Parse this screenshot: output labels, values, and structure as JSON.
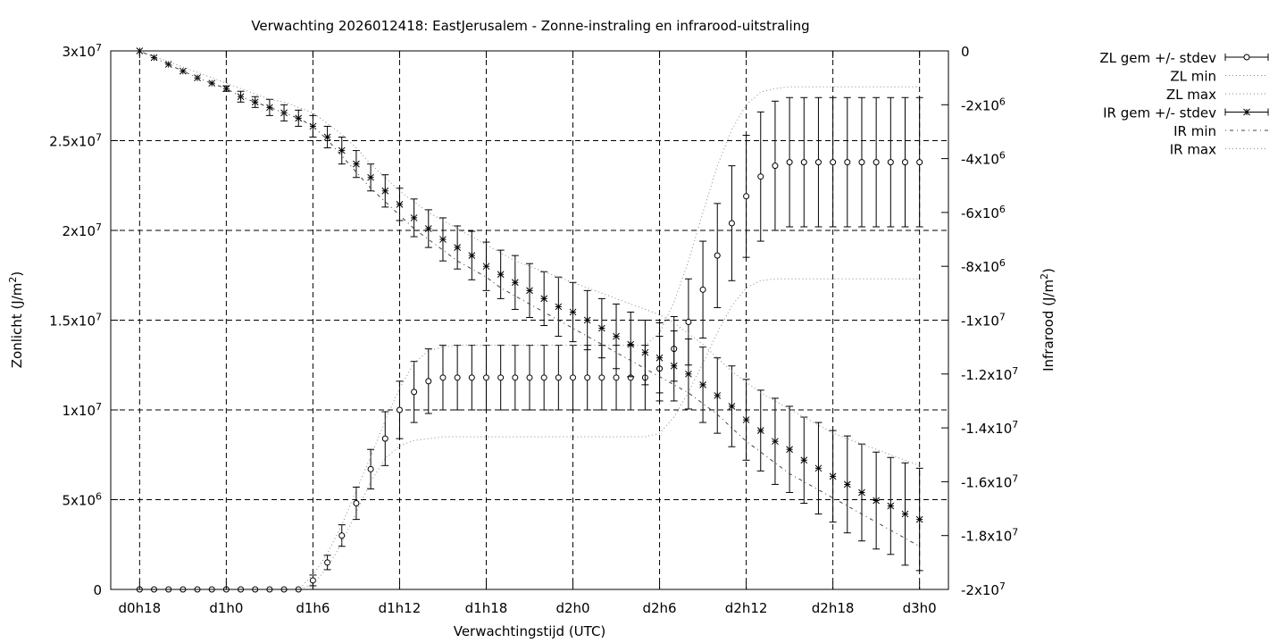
{
  "chart_data": {
    "type": "line",
    "title": "Verwachting 2026012418: EastJerusalem - Zonne-instraling en infrarood-uitstraling",
    "xlabel": "Verwachtingstijd (UTC)",
    "ylabel": "Zonlicht (J/m2)",
    "y2label": "Infrarood (J/m2)",
    "x_ticks": [
      {
        "h": 18,
        "label": "d0h18"
      },
      {
        "h": 24,
        "label": "d1h0"
      },
      {
        "h": 30,
        "label": "d1h6"
      },
      {
        "h": 36,
        "label": "d1h12"
      },
      {
        "h": 42,
        "label": "d1h18"
      },
      {
        "h": 48,
        "label": "d2h0"
      },
      {
        "h": 54,
        "label": "d2h6"
      },
      {
        "h": 60,
        "label": "d2h12"
      },
      {
        "h": 66,
        "label": "d2h18"
      },
      {
        "h": 72,
        "label": "d3h0"
      }
    ],
    "xlim": [
      16,
      74
    ],
    "ylim": [
      0,
      30000000
    ],
    "y2lim": [
      -20000000,
      0
    ],
    "y_ticks": [
      {
        "v": 0,
        "m": "0",
        "e": ""
      },
      {
        "v": 5000000,
        "m": "5x10",
        "e": "6"
      },
      {
        "v": 10000000,
        "m": "1x10",
        "e": "7"
      },
      {
        "v": 15000000,
        "m": "1.5x10",
        "e": "7"
      },
      {
        "v": 20000000,
        "m": "2x10",
        "e": "7"
      },
      {
        "v": 25000000,
        "m": "2.5x10",
        "e": "7"
      },
      {
        "v": 30000000,
        "m": "3x10",
        "e": "7"
      }
    ],
    "y2_ticks": [
      {
        "v": 0,
        "m": "0",
        "e": ""
      },
      {
        "v": -2000000,
        "m": "-2x10",
        "e": "6"
      },
      {
        "v": -4000000,
        "m": "-4x10",
        "e": "6"
      },
      {
        "v": -6000000,
        "m": "-6x10",
        "e": "6"
      },
      {
        "v": -8000000,
        "m": "-8x10",
        "e": "6"
      },
      {
        "v": -10000000,
        "m": "-1x10",
        "e": "7"
      },
      {
        "v": -12000000,
        "m": "-1.2x10",
        "e": "7"
      },
      {
        "v": -14000000,
        "m": "-1.4x10",
        "e": "7"
      },
      {
        "v": -16000000,
        "m": "-1.6x10",
        "e": "7"
      },
      {
        "v": -18000000,
        "m": "-1.8x10",
        "e": "7"
      },
      {
        "v": -20000000,
        "m": "-2x10",
        "e": "7"
      }
    ],
    "grid": true,
    "legend_position": "outside top-right",
    "legend": [
      {
        "label": "ZL gem +/- stdev",
        "style": "errorbar-circle"
      },
      {
        "label": "ZL min",
        "style": "dotted"
      },
      {
        "label": "ZL max",
        "style": "dotted"
      },
      {
        "label": "IR gem +/- stdev",
        "style": "errorbar-star"
      },
      {
        "label": "IR min",
        "style": "dotdash"
      },
      {
        "label": "IR max",
        "style": "dotted"
      }
    ],
    "x": [
      18,
      19,
      20,
      21,
      22,
      23,
      24,
      25,
      26,
      27,
      28,
      29,
      30,
      31,
      32,
      33,
      34,
      35,
      36,
      37,
      38,
      39,
      40,
      41,
      42,
      43,
      44,
      45,
      46,
      47,
      48,
      49,
      50,
      51,
      52,
      53,
      54,
      55,
      56,
      57,
      58,
      59,
      60,
      61,
      62,
      63,
      64,
      65,
      66,
      67,
      68,
      69,
      70,
      71,
      72
    ],
    "series": [
      {
        "name": "ZL gem +/- stdev",
        "axis": "y",
        "marker": "circle",
        "values": [
          0,
          0,
          0,
          0,
          0,
          0,
          0,
          0,
          0,
          0,
          0,
          0,
          500000,
          1500000,
          3000000,
          4800000,
          6700000,
          8400000,
          10000000,
          11000000,
          11600000,
          11800000,
          11800000,
          11800000,
          11800000,
          11800000,
          11800000,
          11800000,
          11800000,
          11800000,
          11800000,
          11800000,
          11800000,
          11800000,
          11800000,
          11800000,
          12300000,
          13400000,
          14900000,
          16700000,
          18600000,
          20400000,
          21900000,
          23000000,
          23600000,
          23800000,
          23800000,
          23800000,
          23800000,
          23800000,
          23800000,
          23800000,
          23800000,
          23800000,
          23800000
        ],
        "stdev": [
          0,
          0,
          0,
          0,
          0,
          0,
          0,
          0,
          0,
          0,
          0,
          0,
          300000,
          400000,
          600000,
          900000,
          1100000,
          1500000,
          1600000,
          1700000,
          1800000,
          1800000,
          1800000,
          1800000,
          1800000,
          1800000,
          1800000,
          1800000,
          1800000,
          1800000,
          1800000,
          1800000,
          1800000,
          1800000,
          1800000,
          1800000,
          1800000,
          1800000,
          2400000,
          2700000,
          2900000,
          3200000,
          3400000,
          3600000,
          3600000,
          3600000,
          3600000,
          3600000,
          3600000,
          3600000,
          3600000,
          3600000,
          3600000,
          3600000,
          3600000
        ]
      },
      {
        "name": "ZL min",
        "axis": "y",
        "values": [
          0,
          0,
          0,
          0,
          0,
          0,
          0,
          0,
          0,
          0,
          0,
          0,
          300000,
          1200000,
          2600000,
          4300000,
          6000000,
          7300000,
          8000000,
          8300000,
          8400000,
          8500000,
          8500000,
          8500000,
          8500000,
          8500000,
          8500000,
          8500000,
          8500000,
          8500000,
          8500000,
          8500000,
          8500000,
          8500000,
          8500000,
          8500000,
          8700000,
          9600000,
          11000000,
          12600000,
          14300000,
          15800000,
          16800000,
          17200000,
          17300000,
          17300000,
          17300000,
          17300000,
          17300000,
          17300000,
          17300000,
          17300000,
          17300000,
          17300000,
          17300000
        ]
      },
      {
        "name": "ZL max",
        "axis": "y",
        "values": [
          0,
          0,
          0,
          0,
          0,
          0,
          0,
          0,
          0,
          0,
          0,
          0,
          800000,
          2000000,
          3600000,
          5500000,
          7400000,
          9400000,
          11200000,
          12600000,
          13300000,
          13500000,
          13600000,
          13600000,
          13600000,
          13600000,
          13600000,
          13600000,
          13600000,
          13600000,
          13600000,
          13600000,
          13600000,
          13600000,
          13600000,
          13600000,
          14300000,
          16000000,
          18300000,
          21000000,
          23600000,
          25600000,
          27000000,
          27700000,
          27900000,
          28000000,
          28000000,
          28000000,
          28000000,
          28000000,
          28000000,
          28000000,
          28000000,
          28000000,
          28000000
        ]
      },
      {
        "name": "IR gem +/- stdev",
        "axis": "y2",
        "marker": "star",
        "values": [
          0,
          -250000,
          -500000,
          -750000,
          -1000000,
          -1200000,
          -1400000,
          -1700000,
          -1900000,
          -2100000,
          -2300000,
          -2500000,
          -2800000,
          -3200000,
          -3700000,
          -4200000,
          -4700000,
          -5200000,
          -5700000,
          -6200000,
          -6600000,
          -7000000,
          -7300000,
          -7600000,
          -8000000,
          -8300000,
          -8600000,
          -8900000,
          -9200000,
          -9500000,
          -9700000,
          -10000000,
          -10300000,
          -10600000,
          -10900000,
          -11200000,
          -11400000,
          -11700000,
          -12000000,
          -12400000,
          -12800000,
          -13200000,
          -13700000,
          -14100000,
          -14500000,
          -14800000,
          -15200000,
          -15500000,
          -15800000,
          -16100000,
          -16400000,
          -16700000,
          -16900000,
          -17200000,
          -17400000
        ],
        "stdev": [
          0,
          0,
          0,
          0,
          0,
          0,
          100000,
          200000,
          200000,
          300000,
          300000,
          300000,
          400000,
          400000,
          500000,
          500000,
          500000,
          600000,
          600000,
          700000,
          700000,
          800000,
          800000,
          900000,
          900000,
          900000,
          1000000,
          1000000,
          1000000,
          1100000,
          1100000,
          1100000,
          1100000,
          1200000,
          1200000,
          1200000,
          1300000,
          1300000,
          1300000,
          1400000,
          1400000,
          1500000,
          1500000,
          1500000,
          1600000,
          1600000,
          1600000,
          1700000,
          1700000,
          1800000,
          1800000,
          1800000,
          1800000,
          1900000,
          1900000
        ]
      },
      {
        "name": "IR min",
        "axis": "y2",
        "style": "dotdash",
        "values": [
          0,
          -250000,
          -500000,
          -750000,
          -1000000,
          -1200000,
          -1400000,
          -1700000,
          -1900000,
          -2100000,
          -2300000,
          -2500000,
          -2800000,
          -3300000,
          -3900000,
          -4500000,
          -5100000,
          -5600000,
          -6100000,
          -6600000,
          -7000000,
          -7400000,
          -7800000,
          -8100000,
          -8400000,
          -8800000,
          -9100000,
          -9400000,
          -9700000,
          -10000000,
          -10300000,
          -10600000,
          -10900000,
          -11200000,
          -11500000,
          -11800000,
          -12100000,
          -12400000,
          -12700000,
          -13100000,
          -13500000,
          -14000000,
          -14500000,
          -14900000,
          -15300000,
          -15700000,
          -16000000,
          -16300000,
          -16600000,
          -16900000,
          -17200000,
          -17500000,
          -17800000,
          -18100000,
          -18400000
        ]
      },
      {
        "name": "IR max",
        "axis": "y2",
        "values": [
          0,
          -200000,
          -400000,
          -600000,
          -800000,
          -1000000,
          -1200000,
          -1400000,
          -1600000,
          -1800000,
          -1900000,
          -2100000,
          -2300000,
          -2700000,
          -3100000,
          -3600000,
          -4200000,
          -4700000,
          -5200000,
          -5600000,
          -6000000,
          -6300000,
          -6600000,
          -6900000,
          -7200000,
          -7500000,
          -7800000,
          -8000000,
          -8200000,
          -8400000,
          -8600000,
          -8800000,
          -9000000,
          -9200000,
          -9400000,
          -9600000,
          -9800000,
          -10100000,
          -10500000,
          -10900000,
          -11400000,
          -11900000,
          -12300000,
          -12700000,
          -13000000,
          -13300000,
          -13600000,
          -13900000,
          -14200000,
          -14400000,
          -14600000,
          -14800000,
          -15000000,
          -15200000,
          -15400000
        ]
      }
    ]
  }
}
